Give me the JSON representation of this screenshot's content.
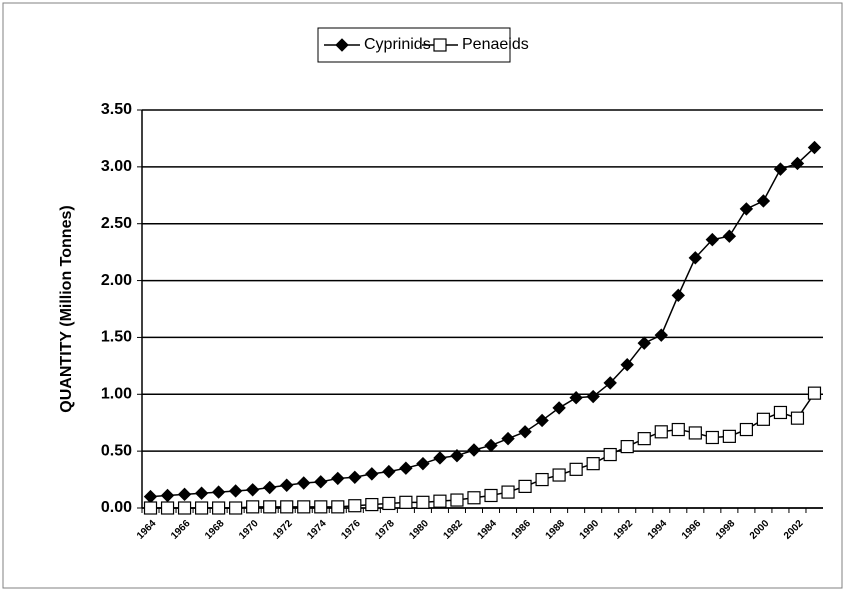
{
  "chart_data": {
    "type": "line",
    "y_label": "QUANTITY (Million Tonnes)",
    "categories": [
      "1964",
      null,
      "1966",
      null,
      "1968",
      null,
      "1970",
      null,
      "1972",
      null,
      "1974",
      null,
      "1976",
      null,
      "1978",
      null,
      "1980",
      null,
      "1982",
      null,
      "1984",
      null,
      "1986",
      null,
      "1988",
      null,
      "1990",
      null,
      "1992",
      null,
      "1994",
      null,
      "1996",
      null,
      "1998",
      null,
      "2000",
      null,
      "2002",
      null
    ],
    "series": [
      {
        "name": "Cyprinids",
        "color": "#000000",
        "marker": "diamond",
        "values": [
          0.1,
          0.11,
          0.12,
          0.13,
          0.14,
          0.15,
          0.16,
          0.18,
          0.2,
          0.22,
          0.23,
          0.26,
          0.27,
          0.3,
          0.32,
          0.35,
          0.39,
          0.44,
          0.46,
          0.51,
          0.55,
          0.61,
          0.67,
          0.77,
          0.88,
          0.97,
          0.98,
          1.1,
          1.26,
          1.45,
          1.52,
          1.87,
          2.2,
          2.36,
          2.39,
          2.63,
          2.7,
          2.98,
          3.03,
          3.17
        ]
      },
      {
        "name": "Penaeids",
        "color": "#000000",
        "marker": "square",
        "values": [
          0.0,
          0.0,
          0.0,
          0.0,
          0.0,
          0.0,
          0.01,
          0.01,
          0.01,
          0.01,
          0.01,
          0.01,
          0.02,
          0.03,
          0.04,
          0.05,
          0.05,
          0.06,
          0.07,
          0.09,
          0.11,
          0.14,
          0.19,
          0.25,
          0.29,
          0.34,
          0.39,
          0.47,
          0.54,
          0.61,
          0.67,
          0.69,
          0.66,
          0.62,
          0.63,
          0.69,
          0.78,
          0.84,
          0.79,
          1.01
        ]
      }
    ],
    "ylim": [
      0,
      3.5
    ],
    "yticks": [
      {
        "value": 0,
        "label": "0.00"
      },
      {
        "value": 0.5,
        "label": "0.50"
      },
      {
        "value": 1,
        "label": "1.00"
      },
      {
        "value": 1.5,
        "label": "1.50"
      },
      {
        "value": 2,
        "label": "2.00"
      },
      {
        "value": 2.5,
        "label": "2.50"
      },
      {
        "value": 3,
        "label": "3.00"
      },
      {
        "value": 3.5,
        "label": "3.50"
      }
    ],
    "grid": true,
    "legend": "top"
  }
}
